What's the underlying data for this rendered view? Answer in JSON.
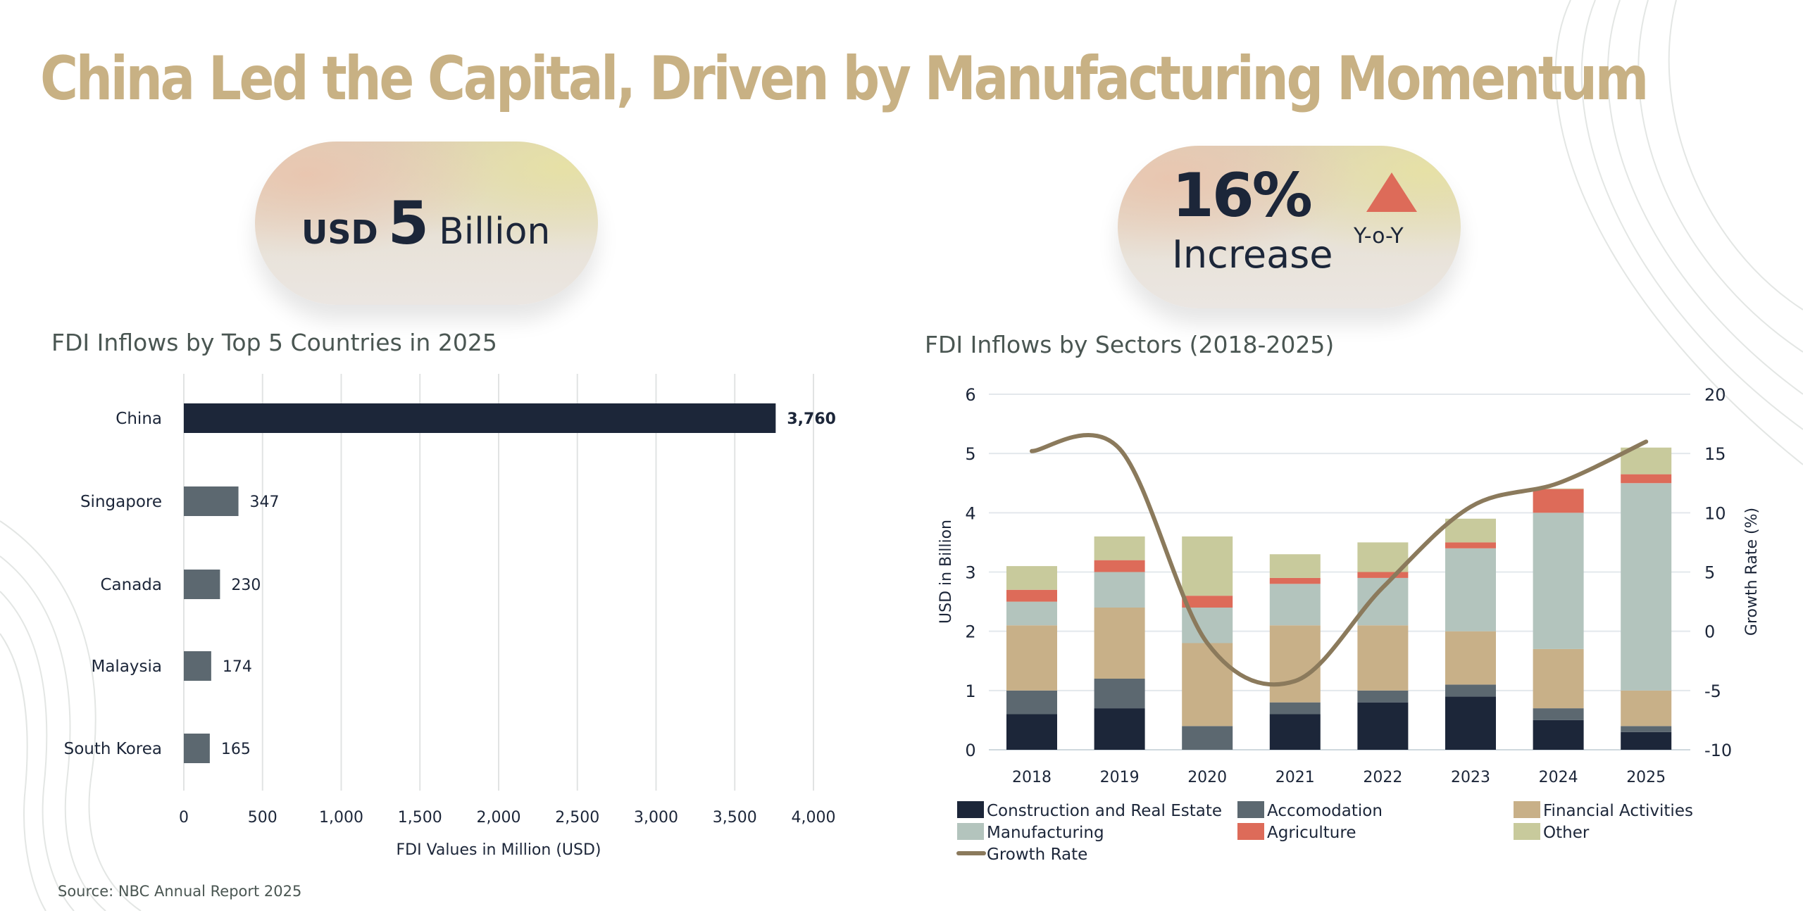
{
  "title": "China Led the Capital, Driven by Manufacturing Momentum",
  "kpis": {
    "total": {
      "prefix": "USD",
      "value": "5",
      "unit": "Billion"
    },
    "growth": {
      "value": "16%",
      "label": "Increase",
      "period": "Y-o-Y",
      "icon": "triangle-up-icon",
      "icon_color": "#dd6b59"
    }
  },
  "source": "Source: NBC Annual Report 2025",
  "chart_data": [
    {
      "type": "bar",
      "orientation": "horizontal",
      "title": "FDI Inflows by Top 5 Countries in 2025",
      "xlabel": "FDI Values in Million (USD)",
      "ylabel": "",
      "categories": [
        "China",
        "Singapore",
        "Canada",
        "Malaysia",
        "South Korea"
      ],
      "values": [
        3760,
        347,
        230,
        174,
        165
      ],
      "data_labels": [
        "3,760",
        "347",
        "230",
        "174",
        "165"
      ],
      "xlim": [
        0,
        4000
      ],
      "xticks": [
        "0",
        "500",
        "1,000",
        "1,500",
        "2,000",
        "2,500",
        "3,000",
        "3,500",
        "4,000"
      ],
      "grid": "vertical",
      "colors": {
        "highlight": "#1c2639",
        "default": "#5c6870"
      }
    },
    {
      "type": "bar",
      "stacked": true,
      "title": "FDI Inflows by Sectors (2018-2025)",
      "categories": [
        "2018",
        "2019",
        "2020",
        "2021",
        "2022",
        "2023",
        "2024",
        "2025"
      ],
      "ylabel": "USD in Billion",
      "ylim": [
        0,
        6
      ],
      "yticks": [
        "0",
        "1",
        "2",
        "3",
        "4",
        "5",
        "6"
      ],
      "y2label": "Growth Rate (%)",
      "y2lim": [
        -10,
        20
      ],
      "y2ticks": [
        "-10",
        "-5",
        "0",
        "5",
        "10",
        "15",
        "20"
      ],
      "grid": "horizontal",
      "legend": "bottom",
      "series": [
        {
          "name": "Construction and Real Estate",
          "color": "#1c2639",
          "values": [
            0.6,
            0.7,
            0.0,
            0.6,
            0.8,
            0.9,
            0.5,
            0.3
          ]
        },
        {
          "name": "Accomodation",
          "color": "#5c6870",
          "values": [
            0.4,
            0.5,
            0.4,
            0.2,
            0.2,
            0.2,
            0.2,
            0.1
          ]
        },
        {
          "name": "Financial Activities",
          "color": "#c8b088",
          "values": [
            1.1,
            1.2,
            1.4,
            1.3,
            1.1,
            0.9,
            1.0,
            0.6
          ]
        },
        {
          "name": "Manufacturing",
          "color": "#b3c4bd",
          "values": [
            0.4,
            0.6,
            0.6,
            0.7,
            0.8,
            1.4,
            2.3,
            3.5
          ]
        },
        {
          "name": "Agriculture",
          "color": "#dd6b59",
          "values": [
            0.2,
            0.2,
            0.2,
            0.1,
            0.1,
            0.1,
            0.4,
            0.15
          ]
        },
        {
          "name": "Other",
          "color": "#c8ca9c",
          "values": [
            0.4,
            0.4,
            1.0,
            0.4,
            0.5,
            0.4,
            0.01,
            0.45
          ]
        }
      ],
      "line_series": {
        "name": "Growth Rate",
        "color": "#8b7a5c",
        "axis": "right",
        "values": [
          15.2,
          15.4,
          -1.0,
          -4.2,
          3.7,
          10.5,
          12.5,
          16.0
        ]
      }
    }
  ]
}
